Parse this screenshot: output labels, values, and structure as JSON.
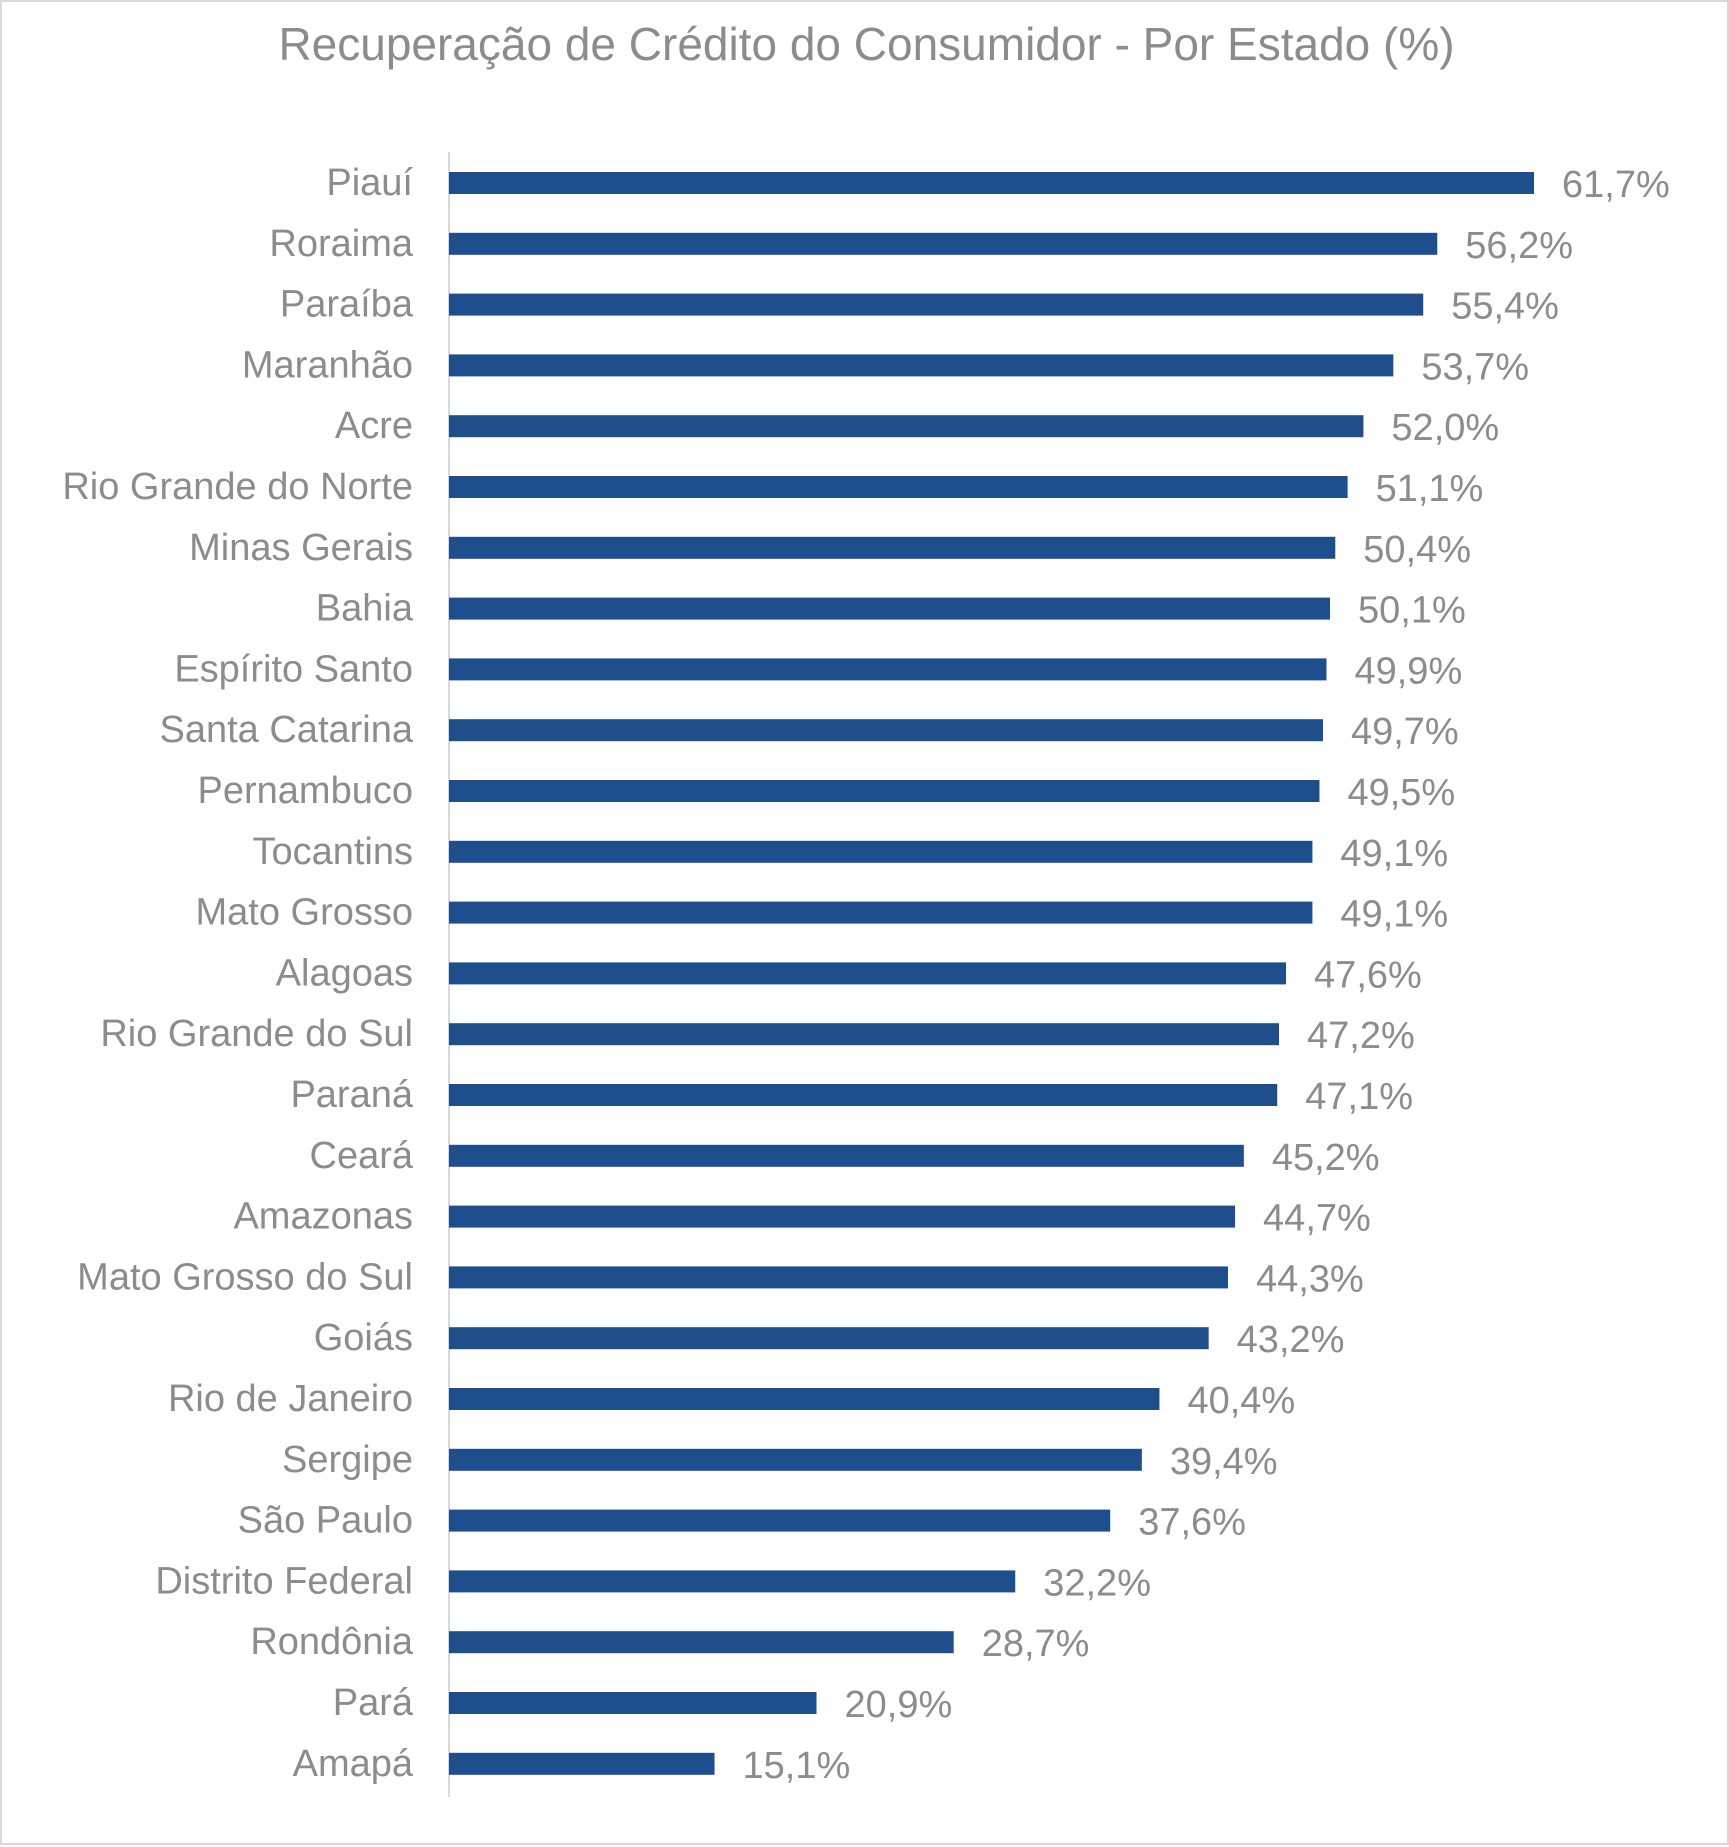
{
  "colors": {
    "bar": "#1f4e8c",
    "axis": "#d9d9d9",
    "text": "#8c8c8c"
  },
  "chart_data": {
    "type": "bar",
    "orientation": "horizontal",
    "title": "Recuperação de Crédito do Consumidor - Por Estado (%)",
    "xlabel": "",
    "ylabel": "",
    "xlim": [
      0,
      70
    ],
    "grid": false,
    "legend": "none",
    "categories": [
      "Piauí",
      "Roraima",
      "Paraíba",
      "Maranhão",
      "Acre",
      "Rio Grande do Norte",
      "Minas Gerais",
      "Bahia",
      "Espírito Santo",
      "Santa Catarina",
      "Pernambuco",
      "Tocantins",
      "Mato Grosso",
      "Alagoas",
      "Rio Grande do Sul",
      "Paraná",
      "Ceará",
      "Amazonas",
      "Mato Grosso do Sul",
      "Goiás",
      "Rio de Janeiro",
      "Sergipe",
      "São Paulo",
      "Distrito Federal",
      "Rondônia",
      "Pará",
      "Amapá"
    ],
    "values": [
      61.7,
      56.2,
      55.4,
      53.7,
      52.0,
      51.1,
      50.4,
      50.1,
      49.9,
      49.7,
      49.5,
      49.1,
      49.1,
      47.6,
      47.2,
      47.1,
      45.2,
      44.7,
      44.3,
      43.2,
      40.4,
      39.4,
      37.6,
      32.2,
      28.7,
      20.9,
      15.1
    ],
    "data_labels": [
      "61,7%",
      "56,2%",
      "55,4%",
      "53,7%",
      "52,0%",
      "51,1%",
      "50,4%",
      "50,1%",
      "49,9%",
      "49,7%",
      "49,5%",
      "49,1%",
      "49,1%",
      "47,6%",
      "47,2%",
      "47,1%",
      "45,2%",
      "44,7%",
      "44,3%",
      "43,2%",
      "40,4%",
      "39,4%",
      "37,6%",
      "32,2%",
      "28,7%",
      "20,9%",
      "15,1%"
    ]
  }
}
